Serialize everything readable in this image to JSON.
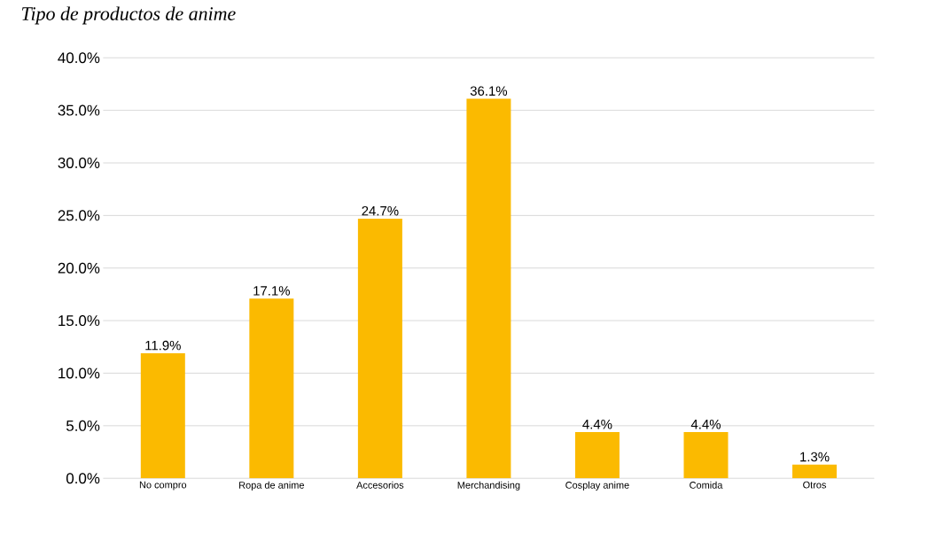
{
  "chart_data": {
    "type": "bar",
    "title": "Tipo de productos de anime",
    "categories": [
      "No compro",
      "Ropa de anime",
      "Accesorios",
      "Merchandising",
      "Cosplay anime",
      "Comida",
      "Otros"
    ],
    "values": [
      11.9,
      17.1,
      24.7,
      36.1,
      4.4,
      4.4,
      1.3
    ],
    "value_labels": [
      "11.9%",
      "17.1%",
      "24.7%",
      "36.1%",
      "4.4%",
      "4.4%",
      "1.3%"
    ],
    "color": "#fbba00",
    "ylim": [
      0,
      40
    ],
    "yticks": [
      {
        "value": 0,
        "label": "0.0%"
      },
      {
        "value": 5,
        "label": "5.0%"
      },
      {
        "value": 10,
        "label": "10.0%"
      },
      {
        "value": 15,
        "label": "15.0%"
      },
      {
        "value": 20,
        "label": "20.0%"
      },
      {
        "value": 25,
        "label": "25.0%"
      },
      {
        "value": 30,
        "label": "30.0%"
      },
      {
        "value": 35,
        "label": "35.0%"
      },
      {
        "value": 40,
        "label": "40.0%"
      }
    ],
    "grid": "y"
  }
}
